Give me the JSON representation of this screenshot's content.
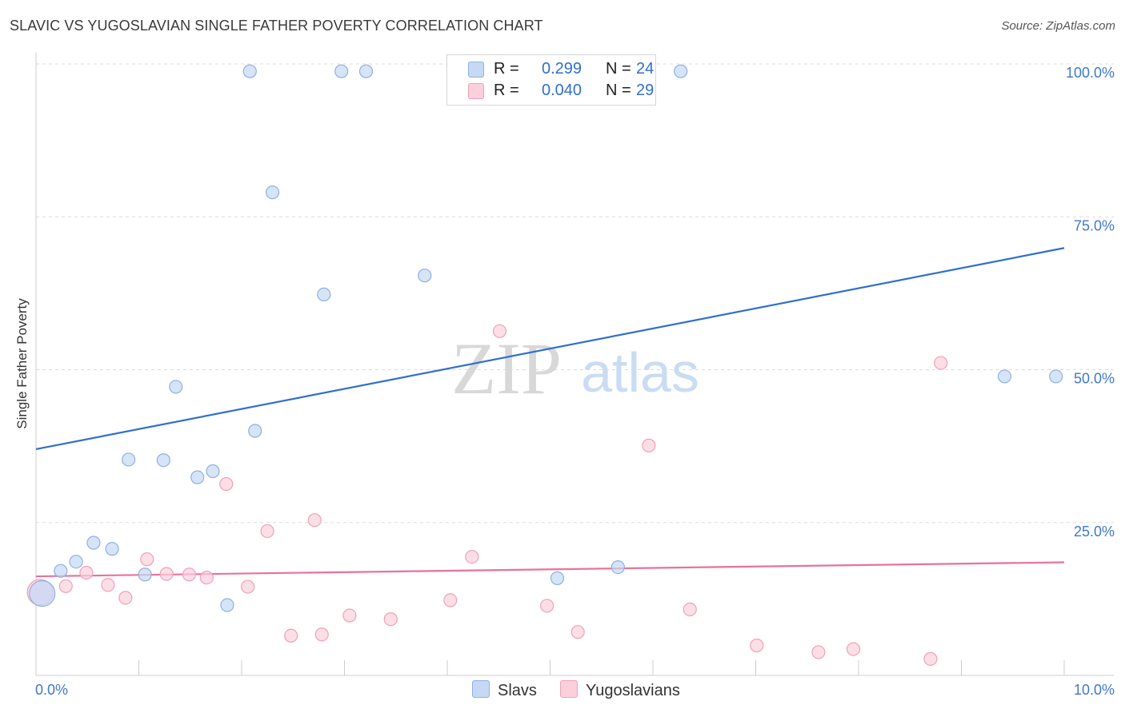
{
  "title": "SLAVIC VS YUGOSLAVIAN SINGLE FATHER POVERTY CORRELATION CHART",
  "source": "Source: ZipAtlas.com",
  "watermark": {
    "zip": "ZIP",
    "atlas": "atlas"
  },
  "legend_top": {
    "r_label": "R =",
    "n_label": "N =",
    "slavs": {
      "r": "0.299",
      "n": "24"
    },
    "yugoslavians": {
      "r": "0.040",
      "n": "29"
    }
  },
  "colors": {
    "slavs_fill": "#c5d8f5",
    "slavs_stroke": "#8fb0e0",
    "slavs_line": "#2f6fce",
    "yugo_fill": "#fbd0dc",
    "yugo_stroke": "#f0a0b8",
    "yugo_line": "#e8729a",
    "tick_label": "#3f78cc"
  },
  "chart_data": {
    "type": "scatter",
    "title": "SLAVIC VS YUGOSLAVIAN SINGLE FATHER POVERTY CORRELATION CHART",
    "xlabel": "",
    "ylabel": "Single Father Poverty",
    "xlim": [
      0,
      10
    ],
    "ylim": [
      0,
      100
    ],
    "x_tick_labels": [
      "0.0%",
      "10.0%"
    ],
    "y_tick_labels": [
      "100.0%",
      "75.0%",
      "50.0%",
      "25.0%"
    ],
    "y_ticks": [
      100,
      75,
      50,
      25
    ],
    "grid": true,
    "series": [
      {
        "name": "Slavs",
        "r": 0.299,
        "n": 24,
        "trend": {
          "x": [
            0,
            10
          ],
          "y": [
            37.0,
            69.9
          ]
        },
        "points": [
          {
            "x": 2.08,
            "y": 98.8
          },
          {
            "x": 2.97,
            "y": 98.8
          },
          {
            "x": 3.21,
            "y": 98.8
          },
          {
            "x": 6.27,
            "y": 98.8
          },
          {
            "x": 2.3,
            "y": 79.0
          },
          {
            "x": 3.78,
            "y": 65.4
          },
          {
            "x": 2.8,
            "y": 62.3
          },
          {
            "x": 1.36,
            "y": 47.2
          },
          {
            "x": 9.42,
            "y": 48.9
          },
          {
            "x": 9.92,
            "y": 48.9
          },
          {
            "x": 2.13,
            "y": 40.0
          },
          {
            "x": 0.9,
            "y": 35.3
          },
          {
            "x": 1.24,
            "y": 35.2
          },
          {
            "x": 1.72,
            "y": 33.4
          },
          {
            "x": 1.57,
            "y": 32.4
          },
          {
            "x": 0.56,
            "y": 21.7
          },
          {
            "x": 0.74,
            "y": 20.7
          },
          {
            "x": 0.39,
            "y": 18.6
          },
          {
            "x": 0.24,
            "y": 17.1
          },
          {
            "x": 1.06,
            "y": 16.5
          },
          {
            "x": 5.66,
            "y": 17.7
          },
          {
            "x": 5.07,
            "y": 15.9
          },
          {
            "x": 1.86,
            "y": 11.5
          },
          {
            "x": 0.06,
            "y": 13.4,
            "large": true
          }
        ]
      },
      {
        "name": "Yugoslavians",
        "r": 0.04,
        "n": 29,
        "trend": {
          "x": [
            0,
            10
          ],
          "y": [
            16.2,
            18.5
          ]
        },
        "points": [
          {
            "x": 4.51,
            "y": 56.3
          },
          {
            "x": 8.8,
            "y": 51.1
          },
          {
            "x": 5.96,
            "y": 37.6
          },
          {
            "x": 1.85,
            "y": 31.3
          },
          {
            "x": 2.71,
            "y": 25.4
          },
          {
            "x": 2.25,
            "y": 23.6
          },
          {
            "x": 4.24,
            "y": 19.4
          },
          {
            "x": 1.08,
            "y": 19.0
          },
          {
            "x": 0.49,
            "y": 16.8
          },
          {
            "x": 1.27,
            "y": 16.6
          },
          {
            "x": 1.49,
            "y": 16.5
          },
          {
            "x": 1.66,
            "y": 16.0
          },
          {
            "x": 0.29,
            "y": 14.6
          },
          {
            "x": 0.7,
            "y": 14.8
          },
          {
            "x": 2.06,
            "y": 14.5
          },
          {
            "x": 0.87,
            "y": 12.7
          },
          {
            "x": 4.03,
            "y": 12.3
          },
          {
            "x": 4.97,
            "y": 11.4
          },
          {
            "x": 6.36,
            "y": 10.8
          },
          {
            "x": 3.05,
            "y": 9.8
          },
          {
            "x": 3.45,
            "y": 9.2
          },
          {
            "x": 2.48,
            "y": 6.5
          },
          {
            "x": 2.78,
            "y": 6.7
          },
          {
            "x": 5.27,
            "y": 7.1
          },
          {
            "x": 7.01,
            "y": 4.9
          },
          {
            "x": 7.61,
            "y": 3.8
          },
          {
            "x": 7.95,
            "y": 4.3
          },
          {
            "x": 8.7,
            "y": 2.7
          },
          {
            "x": 0.04,
            "y": 13.6,
            "large": true
          }
        ]
      }
    ]
  }
}
